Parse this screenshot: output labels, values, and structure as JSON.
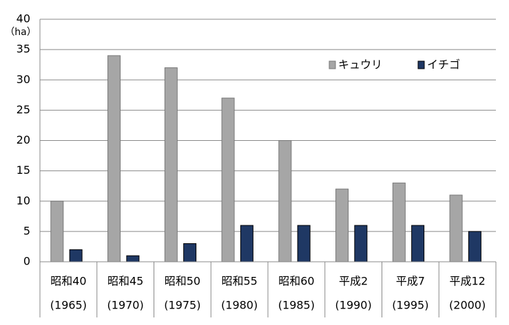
{
  "chart_data": {
    "type": "bar",
    "y_label": "（ha）",
    "categories": [
      [
        "昭和40",
        "(1965)"
      ],
      [
        "昭和45",
        "(1970)"
      ],
      [
        "昭和50",
        "(1975)"
      ],
      [
        "昭和55",
        "(1980)"
      ],
      [
        "昭和60",
        "(1985)"
      ],
      [
        "平成2",
        "(1990)"
      ],
      [
        "平成7",
        "(1995)"
      ],
      [
        "平成12",
        "(2000)"
      ]
    ],
    "series": [
      {
        "name": "キュウリ",
        "color": "#a6a6a6",
        "values": [
          10,
          34,
          32,
          27,
          20,
          12,
          13,
          11
        ]
      },
      {
        "name": "イチゴ",
        "color": "#1f3864",
        "values": [
          2,
          1,
          3,
          6,
          6,
          6,
          6,
          5
        ]
      }
    ],
    "ylim": [
      0,
      40
    ],
    "yticks": [
      0,
      5,
      10,
      15,
      20,
      25,
      30,
      35,
      40
    ],
    "grid": true,
    "legend": "top-right"
  }
}
